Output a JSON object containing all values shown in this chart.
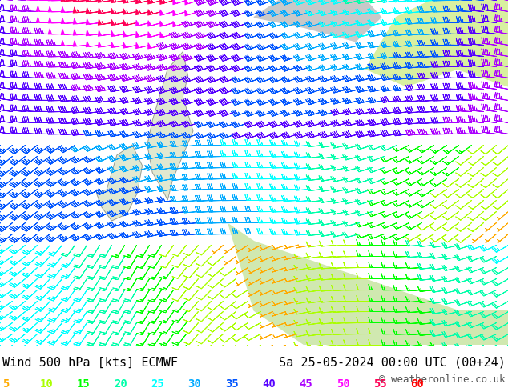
{
  "title_left": "Wind 500 hPa [kts] ECMWF",
  "title_right": "Sa 25-05-2024 00:00 UTC (00+24)",
  "copyright": "© weatheronline.co.uk",
  "legend_values": [
    5,
    10,
    15,
    20,
    25,
    30,
    35,
    40,
    45,
    50,
    55,
    60
  ],
  "legend_colors": [
    "#ffaa00",
    "#aaff00",
    "#00ff00",
    "#00ffaa",
    "#00ffff",
    "#00aaff",
    "#0055ff",
    "#5500ff",
    "#aa00ff",
    "#ff00ff",
    "#ff0055",
    "#ff0000"
  ],
  "bg_color": "#f0f0f0",
  "map_bg": "#ffffff",
  "land_color_main": "#e8e8e8",
  "land_color_highlight": "#ccffcc",
  "sea_color": "#e0f0ff",
  "bottom_bar_color": "#ffffff",
  "text_color": "#000000",
  "font_size_title": 11,
  "font_size_legend": 10,
  "font_size_copyright": 9,
  "wind_speed_min": 5,
  "wind_speed_max": 60,
  "figsize": [
    6.34,
    4.9
  ],
  "dpi": 100
}
